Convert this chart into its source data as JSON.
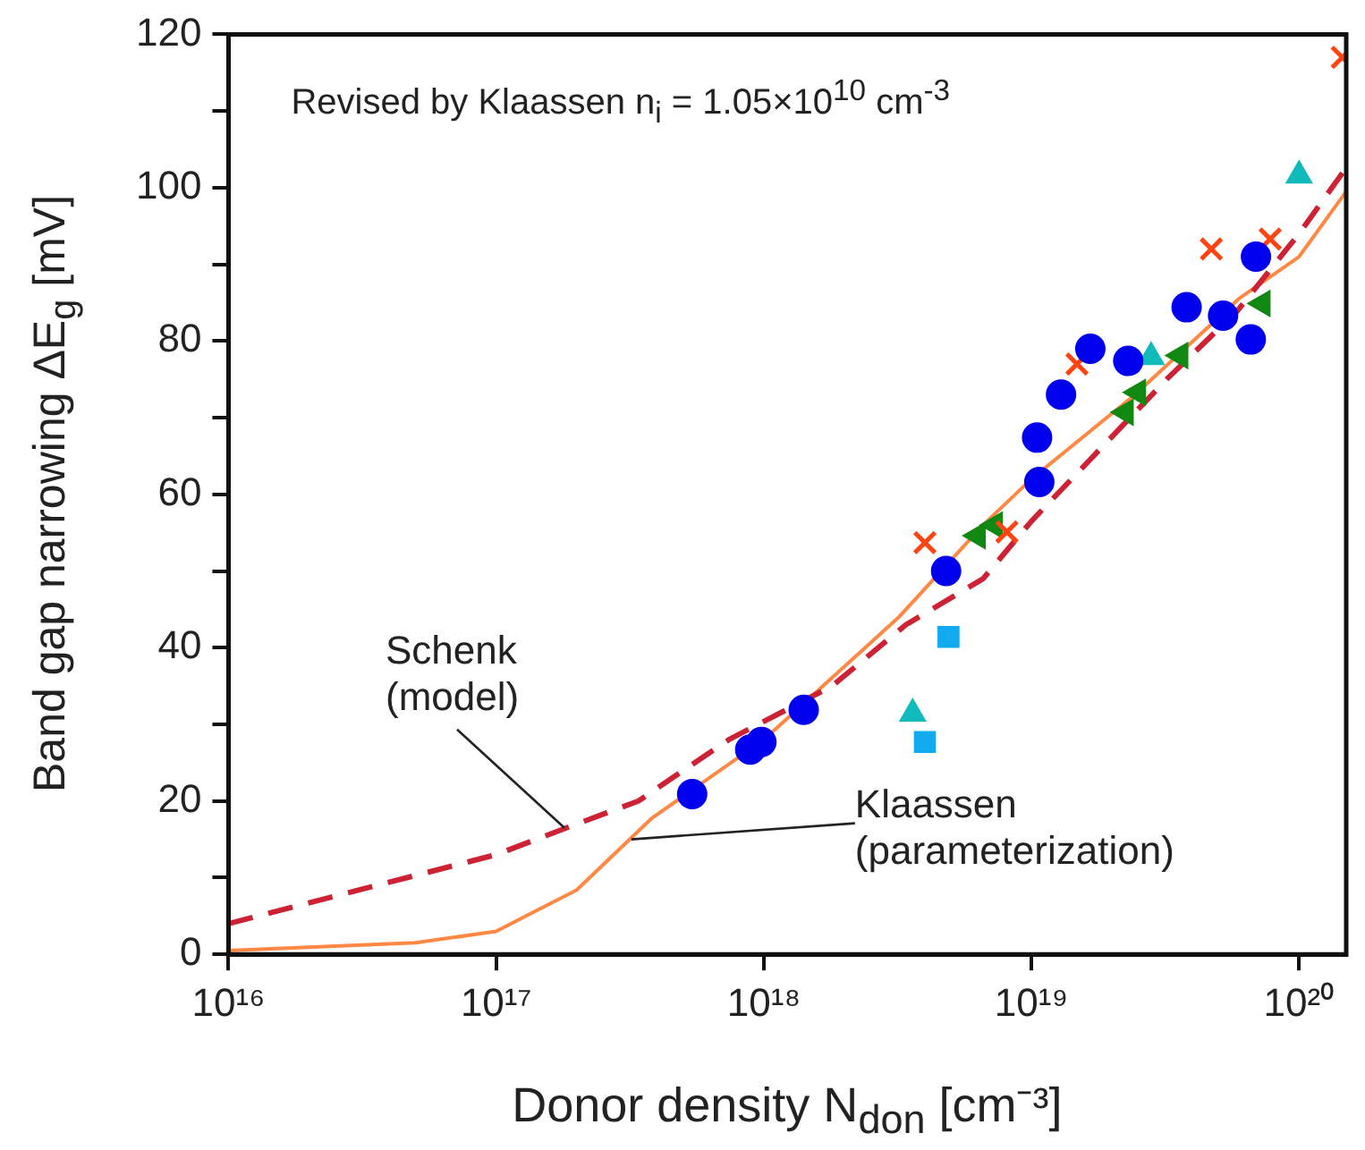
{
  "chart_data": {
    "type": "scatter",
    "xlabel": "Donor density  N$_{don}$  [cm⁻³]",
    "ylabel": "Band gap narrowing  ΔE$_{g}$  [mV]",
    "log": "x",
    "xlim": [
      1e+16,
      1.5e+20
    ],
    "ylim": [
      0,
      120
    ],
    "xticks": [
      {
        "value": 1e+16,
        "label": "10¹⁶"
      },
      {
        "value": 1e+17,
        "label": "10¹⁷"
      },
      {
        "value": 1e+18,
        "label": "10¹⁸"
      },
      {
        "value": 1e+19,
        "label": "10¹⁹"
      },
      {
        "value": 1e+20,
        "label": "10²⁰"
      }
    ],
    "yticks": [
      0,
      {
        "value": 10,
        "label": null
      },
      20,
      {
        "value": 30,
        "label": null
      },
      40,
      {
        "value": 50,
        "label": null
      },
      60,
      {
        "value": 70,
        "label": null
      },
      80,
      {
        "value": 90,
        "label": null
      },
      100,
      {
        "value": 110,
        "label": null
      },
      120
    ],
    "grid": false,
    "legend": false,
    "annotations": [
      "Revised by Klaassen n$_{i}$ = 1.05×10$^{10}$ cm$^{-3}$",
      {
        "text": "Schenk\n(model)",
        "x": 1.8e+17,
        "y": 16.5
      },
      {
        "text": "Klaassen\n(parameterization)",
        "x": 3.2e+17,
        "y": 15
      }
    ],
    "series": [
      {
        "type": "line",
        "color": "#cc2233",
        "line_style": "dashed",
        "marker": "none",
        "x": [
          1e+16,
          1e+17,
          2e+17,
          3.4e+17,
          7.4e+17,
          1.8e+18,
          3.4e+18,
          6.6e+18,
          1e+19,
          3.2e+19,
          5.9e+19,
          1e+20,
          1.5e+20
        ],
        "values": [
          4,
          13,
          17,
          20,
          28,
          35,
          43,
          49,
          56.5,
          75,
          84,
          94,
          102.6
        ]
      },
      {
        "type": "line",
        "color": "#ff8844",
        "line_style": "solid",
        "marker": "none",
        "x": [
          1e+16,
          5e+16,
          1e+17,
          2e+17,
          3.8e+17,
          1e+18,
          3.2e+18,
          6.6e+18,
          1e+19,
          2.4e+19,
          6e+19,
          1e+20,
          1.5e+20
        ],
        "values": [
          0.5,
          1.5,
          3,
          8.4,
          17.7,
          28,
          44,
          56,
          62,
          72.8,
          85.6,
          91,
          99.5
        ]
      },
      {
        "color": "#0000ee",
        "marker": "circle",
        "x": [
          5.4e+17,
          8.9e+17,
          9.8e+17,
          1.41e+18,
          4.8e+18,
          1.07e+19,
          1.05e+19,
          1.29e+19,
          1.66e+19,
          2.3e+19,
          3.8e+19,
          5.2e+19,
          6.6e+19,
          6.9e+19
        ],
        "values": [
          20.9,
          26.7,
          27.7,
          31.9,
          50,
          61.6,
          67.4,
          73,
          79,
          77.4,
          84.4,
          83.3,
          80.2,
          91
        ]
      },
      {
        "color": "#ff4411",
        "marker": "cross",
        "x": [
          4e+18,
          8.1e+18,
          1.48e+19,
          4.7e+19,
          7.8e+19,
          1.45e+20
        ],
        "values": [
          53.7,
          55.1,
          77,
          92,
          93.3,
          117
        ]
      },
      {
        "color": "#118811",
        "marker": "triangle",
        "x": [
          6.3e+18,
          7.3e+18,
          2.25e+19,
          2.5e+19,
          3.6e+19,
          7.3e+19
        ],
        "values": [
          54.6,
          56,
          70.7,
          73.3,
          78.1,
          84.9
        ]
      },
      {
        "color": "#11bbbb",
        "marker": "triangle",
        "x": [
          3.6e+18,
          2.8e+19,
          1e+20
        ],
        "values": [
          31.4,
          77.9,
          101.6
        ]
      },
      {
        "color": "#11aaee",
        "marker": "square",
        "x": [
          4.9e+18,
          4e+18
        ],
        "values": [
          41.4,
          27.7
        ]
      }
    ]
  }
}
